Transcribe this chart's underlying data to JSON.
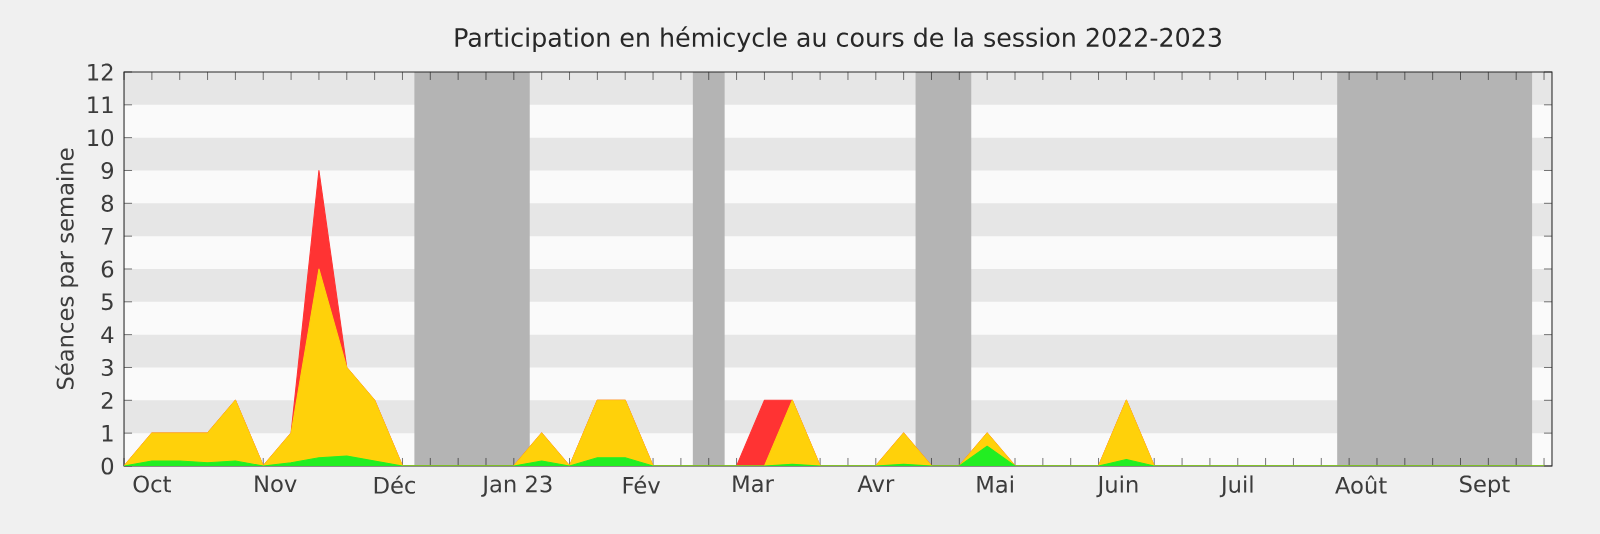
{
  "chart_data": {
    "type": "area",
    "title": "Participation en hémicycle au cours de la session 2022-2023",
    "ylabel": "Séances par semaine",
    "stacked": true,
    "x": [
      "2022-09-24",
      "2022-10-01",
      "2022-10-08",
      "2022-10-15",
      "2022-10-22",
      "2022-10-29",
      "2022-11-05",
      "2022-11-12",
      "2022-11-19",
      "2022-11-26",
      "2022-12-03",
      "2022-12-10",
      "2022-12-17",
      "2022-12-24",
      "2022-12-31",
      "2023-01-07",
      "2023-01-14",
      "2023-01-21",
      "2023-01-28",
      "2023-02-04",
      "2023-02-11",
      "2023-02-18",
      "2023-02-25",
      "2023-03-04",
      "2023-03-11",
      "2023-03-18",
      "2023-03-25",
      "2023-04-01",
      "2023-04-08",
      "2023-04-15",
      "2023-04-22",
      "2023-04-29",
      "2023-05-06",
      "2023-05-13",
      "2023-05-20",
      "2023-05-27",
      "2023-06-03",
      "2023-06-10",
      "2023-06-17",
      "2023-06-24",
      "2023-07-01",
      "2023-07-08",
      "2023-07-15",
      "2023-07-22",
      "2023-07-29",
      "2023-08-05",
      "2023-08-12",
      "2023-08-19",
      "2023-08-26",
      "2023-09-02",
      "2023-09-09",
      "2023-09-16"
    ],
    "series": [
      {
        "color": "#22ee22",
        "values": [
          0,
          0.15,
          0.15,
          0.1,
          0.15,
          0,
          0.1,
          0.25,
          0.3,
          0.15,
          0,
          0,
          0,
          0,
          0,
          0.15,
          0,
          0.25,
          0.25,
          0,
          0,
          0,
          0,
          0,
          0.05,
          0,
          0,
          0,
          0.05,
          0,
          0,
          0.6,
          0,
          0,
          0,
          0,
          0.2,
          0,
          0,
          0,
          0,
          0,
          0,
          0,
          0,
          0,
          0,
          0,
          0,
          0,
          0,
          0
        ]
      },
      {
        "color": "#ffd10a",
        "values": [
          0,
          0.85,
          0.85,
          0.9,
          1.85,
          0,
          0.9,
          5.75,
          2.7,
          1.85,
          0,
          0,
          0,
          0,
          0,
          0.85,
          0,
          1.75,
          1.75,
          0,
          0,
          0,
          0,
          0,
          1.95,
          0,
          0,
          0,
          0.95,
          0,
          0,
          0.4,
          0,
          0,
          0,
          0,
          1.8,
          0,
          0,
          0,
          0,
          0,
          0,
          0,
          0,
          0,
          0,
          0,
          0,
          0,
          0,
          0
        ]
      },
      {
        "color": "#ff3333",
        "values": [
          0,
          0,
          0,
          0,
          0,
          0,
          0,
          3,
          0,
          0,
          0,
          0,
          0,
          0,
          0,
          0,
          0,
          0,
          0,
          0,
          0,
          0,
          0,
          2,
          0,
          0,
          0,
          0,
          0,
          0,
          0,
          0,
          0,
          0,
          0,
          0,
          0,
          0,
          0,
          0,
          0,
          0,
          0,
          0,
          0,
          0,
          0,
          0,
          0,
          0,
          0,
          0
        ]
      }
    ],
    "xlim": [
      "2022-09-24",
      "2023-09-18"
    ],
    "ylim": [
      0,
      12
    ],
    "yticks": [
      0,
      1,
      2,
      3,
      4,
      5,
      6,
      7,
      8,
      9,
      10,
      11,
      12
    ],
    "xticks": [
      {
        "value": "2022-10-01",
        "label": "Oct"
      },
      {
        "value": "2022-11-01",
        "label": "Nov"
      },
      {
        "value": "2022-12-01",
        "label": "Déc"
      },
      {
        "value": "2023-01-01",
        "label": "Jan 23"
      },
      {
        "value": "2023-02-01",
        "label": "Fév"
      },
      {
        "value": "2023-03-01",
        "label": "Mar"
      },
      {
        "value": "2023-04-01",
        "label": "Avr"
      },
      {
        "value": "2023-05-01",
        "label": "Mai"
      },
      {
        "value": "2023-06-01",
        "label": "Juin"
      },
      {
        "value": "2023-07-01",
        "label": "Juil"
      },
      {
        "value": "2023-08-01",
        "label": "Août"
      },
      {
        "value": "2023-09-01",
        "label": "Sept"
      }
    ],
    "bands": [
      {
        "axis": "x",
        "from": "2022-12-06",
        "to": "2023-01-04",
        "color": "#b4b4b4"
      },
      {
        "axis": "x",
        "from": "2023-02-14",
        "to": "2023-02-22",
        "color": "#b4b4b4"
      },
      {
        "axis": "x",
        "from": "2023-04-11",
        "to": "2023-04-25",
        "color": "#b4b4b4"
      },
      {
        "axis": "x",
        "from": "2023-07-26",
        "to": "2023-09-13",
        "color": "#b4b4b4"
      }
    ]
  }
}
